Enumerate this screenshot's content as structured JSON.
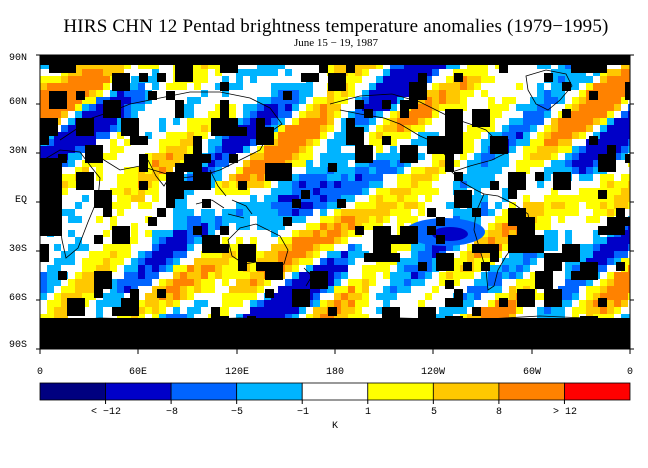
{
  "header": {
    "title": "HIRS CHN 12 Pentad brightness temperature anomalies (1979−1995)",
    "subtitle": "June 15 − 19, 1987"
  },
  "map": {
    "projection": "cylindrical equidistant, centered on 180",
    "lat_range": [
      -90,
      90
    ],
    "lon_range_label": "0 to 0 (360)",
    "y_ticks": [
      "90N",
      "60N",
      "30N",
      "EQ",
      "30S",
      "60S",
      "90S"
    ],
    "x_ticks": [
      "0",
      "60E",
      "120E",
      "180",
      "120W",
      "60W",
      "0"
    ],
    "missing_data_color": "#000000"
  },
  "colorbar": {
    "unit": "K",
    "labels": [
      "< −12",
      "−8",
      "−5",
      "−1",
      "1",
      "5",
      "8",
      "> 12"
    ],
    "colors": [
      "#000080",
      "#0000c8",
      "#0064ff",
      "#00b4ff",
      "#ffffff",
      "#ffff00",
      "#ffc800",
      "#ff8200",
      "#ff0000"
    ]
  }
}
